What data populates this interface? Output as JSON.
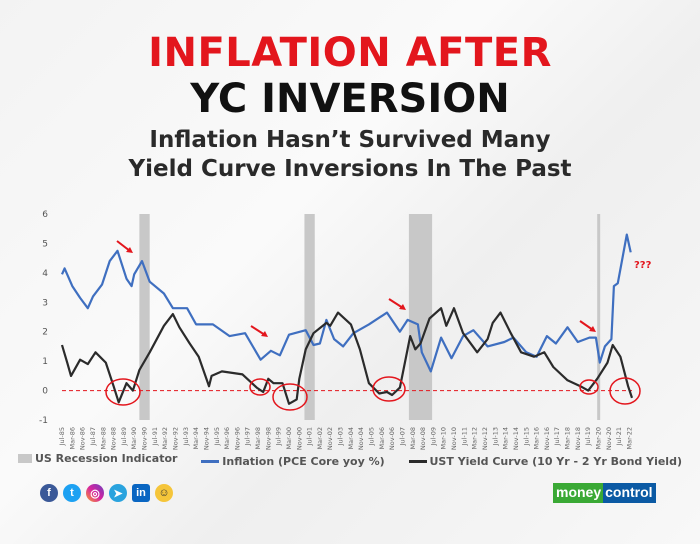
{
  "header": {
    "title_line1": "INFLATION AFTER",
    "title_line2": "YC INVERSION",
    "subtitle_line1": "Inflation Hasn’t Survived Many",
    "subtitle_line2": "Yield Curve Inversions In The Past"
  },
  "chart_data": {
    "type": "line",
    "title": "",
    "xlabel": "",
    "ylabel": "",
    "ylim": [
      -1,
      6
    ],
    "yticks": [
      -1,
      0,
      1,
      2,
      3,
      4,
      5,
      6
    ],
    "xticks": [
      "Jul-85",
      "Mar-86",
      "Nov-86",
      "Jul-87",
      "Mar-88",
      "Nov-88",
      "Jul-89",
      "Mar-90",
      "Nov-90",
      "Jul-91",
      "Mar-92",
      "Nov-92",
      "Jul-93",
      "Mar-94",
      "Nov-94",
      "Jul-95",
      "Mar-96",
      "Nov-96",
      "Jul-97",
      "Mar-98",
      "Nov-98",
      "Jul-99",
      "Mar-00",
      "Nov-00",
      "Jul-01",
      "Mar-02",
      "Nov-02",
      "Jul-03",
      "Mar-04",
      "Nov-04",
      "Jul-05",
      "Mar-06",
      "Nov-06",
      "Jul-07",
      "Mar-08",
      "Nov-08",
      "Jul-09",
      "Mar-10",
      "Nov-10",
      "Jul-11",
      "Mar-12",
      "Nov-12",
      "Jul-13",
      "Mar-14",
      "Nov-14",
      "Jul-15",
      "Mar-16",
      "Nov-16",
      "Jul-17",
      "Mar-18",
      "Nov-18",
      "Jul-19",
      "Mar-20",
      "Nov-20",
      "Jul-21",
      "Mar-22"
    ],
    "xrange": [
      "1985-07",
      "2022-05"
    ],
    "grid": false,
    "legend_position": "bottom",
    "reference_line": {
      "y": 0,
      "color": "#e3161d",
      "style": "dashed"
    },
    "recessions": {
      "name": "US Recession Indicator",
      "color": "#c8c8c8",
      "periods": [
        [
          "1990-07",
          "1991-03"
        ],
        [
          "2001-03",
          "2001-11"
        ],
        [
          "2007-12",
          "2009-06"
        ],
        [
          "2020-02",
          "2020-04"
        ]
      ]
    },
    "series": [
      {
        "name": "Inflation (PCE Core yoy %)",
        "color": "#3f6fc0",
        "points": [
          [
            "1985-07",
            3.95
          ],
          [
            "1985-09",
            4.15
          ],
          [
            "1986-03",
            3.55
          ],
          [
            "1986-09",
            3.15
          ],
          [
            "1987-03",
            2.8
          ],
          [
            "1987-07",
            3.2
          ],
          [
            "1988-02",
            3.6
          ],
          [
            "1988-08",
            4.4
          ],
          [
            "1989-02",
            4.75
          ],
          [
            "1989-09",
            3.8
          ],
          [
            "1990-01",
            3.55
          ],
          [
            "1990-03",
            3.95
          ],
          [
            "1990-09",
            4.4
          ],
          [
            "1991-03",
            3.7
          ],
          [
            "1992-02",
            3.3
          ],
          [
            "1992-09",
            2.8
          ],
          [
            "1993-08",
            2.8
          ],
          [
            "1994-03",
            2.25
          ],
          [
            "1995-04",
            2.25
          ],
          [
            "1996-05",
            1.85
          ],
          [
            "1997-05",
            1.95
          ],
          [
            "1998-05",
            1.05
          ],
          [
            "1999-01",
            1.35
          ],
          [
            "1999-08",
            1.2
          ],
          [
            "2000-03",
            1.9
          ],
          [
            "2001-04",
            2.05
          ],
          [
            "2001-10",
            1.55
          ],
          [
            "2002-03",
            1.6
          ],
          [
            "2002-08",
            2.4
          ],
          [
            "2003-02",
            1.75
          ],
          [
            "2003-09",
            1.5
          ],
          [
            "2004-05",
            1.95
          ],
          [
            "2005-05",
            2.25
          ],
          [
            "2006-07",
            2.65
          ],
          [
            "2007-05",
            2.0
          ],
          [
            "2007-11",
            2.4
          ],
          [
            "2008-07",
            2.25
          ],
          [
            "2008-10",
            1.3
          ],
          [
            "2009-05",
            0.65
          ],
          [
            "2010-01",
            1.8
          ],
          [
            "2010-09",
            1.1
          ],
          [
            "2011-06",
            1.85
          ],
          [
            "2012-02",
            2.05
          ],
          [
            "2013-01",
            1.5
          ],
          [
            "2014-02",
            1.65
          ],
          [
            "2014-09",
            1.8
          ],
          [
            "2015-07",
            1.3
          ],
          [
            "2016-03",
            1.15
          ],
          [
            "2016-11",
            1.85
          ],
          [
            "2017-06",
            1.6
          ],
          [
            "2018-03",
            2.15
          ],
          [
            "2018-11",
            1.65
          ],
          [
            "2019-08",
            1.8
          ],
          [
            "2020-01",
            1.8
          ],
          [
            "2020-04",
            0.95
          ],
          [
            "2020-08",
            1.5
          ],
          [
            "2021-01",
            1.75
          ],
          [
            "2021-03",
            3.55
          ],
          [
            "2021-06",
            3.65
          ],
          [
            "2022-01",
            5.3
          ],
          [
            "2022-04",
            4.7
          ]
        ]
      },
      {
        "name": "UST Yield Curve (10 Yr - 2 Yr Bond Yield)",
        "color": "#2b2b2b",
        "points": [
          [
            "1985-07",
            1.55
          ],
          [
            "1985-11",
            0.95
          ],
          [
            "1986-02",
            0.5
          ],
          [
            "1986-09",
            1.05
          ],
          [
            "1987-03",
            0.9
          ],
          [
            "1987-09",
            1.3
          ],
          [
            "1988-05",
            0.95
          ],
          [
            "1988-11",
            0.15
          ],
          [
            "1989-03",
            -0.4
          ],
          [
            "1989-09",
            0.25
          ],
          [
            "1990-02",
            0.0
          ],
          [
            "1990-07",
            0.7
          ],
          [
            "1991-03",
            1.3
          ],
          [
            "1992-02",
            2.2
          ],
          [
            "1992-09",
            2.6
          ],
          [
            "1993-02",
            2.15
          ],
          [
            "1993-10",
            1.6
          ],
          [
            "1994-05",
            1.15
          ],
          [
            "1995-01",
            0.15
          ],
          [
            "1995-03",
            0.5
          ],
          [
            "1995-11",
            0.65
          ],
          [
            "1997-03",
            0.55
          ],
          [
            "1998-02",
            0.1
          ],
          [
            "1998-07",
            -0.05
          ],
          [
            "1998-11",
            0.4
          ],
          [
            "1999-03",
            0.25
          ],
          [
            "1999-10",
            0.25
          ],
          [
            "2000-03",
            -0.45
          ],
          [
            "2000-09",
            -0.3
          ],
          [
            "2000-11",
            0.4
          ],
          [
            "2001-04",
            1.4
          ],
          [
            "2001-10",
            1.95
          ],
          [
            "2002-08",
            2.3
          ],
          [
            "2002-11",
            2.2
          ],
          [
            "2003-05",
            2.65
          ],
          [
            "2004-03",
            2.25
          ],
          [
            "2004-10",
            1.4
          ],
          [
            "2005-05",
            0.25
          ],
          [
            "2006-01",
            -0.1
          ],
          [
            "2006-07",
            -0.05
          ],
          [
            "2006-11",
            -0.15
          ],
          [
            "2007-05",
            0.1
          ],
          [
            "2008-01",
            1.85
          ],
          [
            "2008-05",
            1.4
          ],
          [
            "2008-09",
            1.6
          ],
          [
            "2009-04",
            2.45
          ],
          [
            "2010-01",
            2.8
          ],
          [
            "2010-05",
            2.2
          ],
          [
            "2010-11",
            2.8
          ],
          [
            "2011-06",
            1.95
          ],
          [
            "2012-05",
            1.3
          ],
          [
            "2013-01",
            1.75
          ],
          [
            "2013-05",
            2.3
          ],
          [
            "2013-11",
            2.65
          ],
          [
            "2014-07",
            1.95
          ],
          [
            "2015-03",
            1.3
          ],
          [
            "2016-01",
            1.15
          ],
          [
            "2016-09",
            1.3
          ],
          [
            "2017-04",
            0.8
          ],
          [
            "2018-03",
            0.35
          ],
          [
            "2019-01",
            0.15
          ],
          [
            "2019-07",
            0.0
          ],
          [
            "2020-02",
            0.4
          ],
          [
            "2020-10",
            0.95
          ],
          [
            "2021-02",
            1.55
          ],
          [
            "2021-08",
            1.15
          ],
          [
            "2022-02",
            0.15
          ],
          [
            "2022-05",
            -0.25
          ]
        ]
      }
    ],
    "annotations": [
      "???"
    ]
  },
  "legend": {
    "recession": "US Recession Indicator",
    "inflation": "Inflation (PCE Core yoy %)",
    "yield_curve": "UST Yield Curve (10 Yr - 2 Yr Bond Yield)"
  },
  "footer": {
    "social_icons": [
      "facebook-icon",
      "twitter-icon",
      "instagram-icon",
      "telegram-icon",
      "linkedin-icon",
      "koo-icon"
    ],
    "brand_part1": "money",
    "brand_part2": "control"
  }
}
